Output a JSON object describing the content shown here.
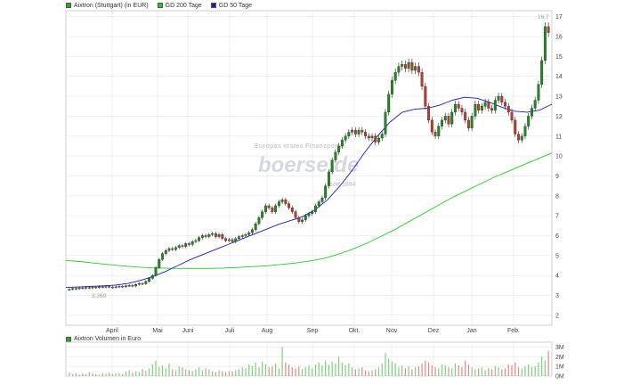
{
  "legend": {
    "price_label": "Aixtron (Stuttgart) (in EUR)",
    "gd200_label": "GD 200 Tage",
    "gd50_label": "GD 50 Tage",
    "volume_label": "Aixtron Volumen in Euro"
  },
  "colors": {
    "price_swatch": "#22aa22",
    "gd200": "#22cc22",
    "gd50": "#1a1acc",
    "up": "#1e8a1e",
    "down": "#c0392b",
    "vol_up": "#7fcf7f",
    "vol_down": "#e08a8a",
    "grid": "#e5e5e5"
  },
  "watermark": {
    "line1": "Europas erstes Finanzportal",
    "brand": "boerse.de",
    "line3": "seit 1994"
  },
  "chart_data": [
    {
      "type": "candlestick",
      "title": "Aixtron (Stuttgart) (in EUR)",
      "ylim": [
        1.5,
        17.3
      ],
      "y_ticks": [
        "2",
        "3",
        "4",
        "5",
        "6",
        "7",
        "8",
        "9",
        "10",
        "11",
        "12",
        "13",
        "14",
        "15",
        "16",
        "17"
      ],
      "x_ticks": [
        "April",
        "Mai",
        "Juni",
        "Juli",
        "Aug",
        "Sep",
        "Okt.",
        "Nov",
        "Dez",
        "Jan",
        "Feb."
      ],
      "low_annotation": "3.269",
      "high_annotation": "16.7",
      "close": [
        3.3,
        3.35,
        3.33,
        3.38,
        3.36,
        3.4,
        3.37,
        3.42,
        3.39,
        3.44,
        3.41,
        3.45,
        3.42,
        3.4,
        3.44,
        3.46,
        3.43,
        3.48,
        3.5,
        3.47,
        3.55,
        3.6,
        3.58,
        3.7,
        3.85,
        4.0,
        4.4,
        4.8,
        5.1,
        5.25,
        5.35,
        5.3,
        5.4,
        5.5,
        5.45,
        5.6,
        5.55,
        5.7,
        5.75,
        5.9,
        6.0,
        5.95,
        6.05,
        6.1,
        5.95,
        6.05,
        5.85,
        5.75,
        5.8,
        5.7,
        5.85,
        5.95,
        6.0,
        6.05,
        6.15,
        6.3,
        6.6,
        6.9,
        7.2,
        7.5,
        7.4,
        7.2,
        7.5,
        7.7,
        7.8,
        7.6,
        7.4,
        7.2,
        6.9,
        6.7,
        6.8,
        7.0,
        7.1,
        7.2,
        7.5,
        7.7,
        7.9,
        8.5,
        9.2,
        9.8,
        10.2,
        10.5,
        10.8,
        11.0,
        11.2,
        11.3,
        11.1,
        11.3,
        11.2,
        11.0,
        10.9,
        11.0,
        10.7,
        10.9,
        11.1,
        12.2,
        13.1,
        13.8,
        14.2,
        14.5,
        14.6,
        14.4,
        14.7,
        14.3,
        14.5,
        14.2,
        13.5,
        12.5,
        11.8,
        11.2,
        11.0,
        11.5,
        11.8,
        12.0,
        11.6,
        12.2,
        12.6,
        12.4,
        12.2,
        11.8,
        11.4,
        12.0,
        12.6,
        12.3,
        12.5,
        12.7,
        12.4,
        12.3,
        12.8,
        13.0,
        12.7,
        12.5,
        12.2,
        11.8,
        11.1,
        10.8,
        11.0,
        11.5,
        12.0,
        12.4,
        12.8,
        13.6,
        14.8,
        16.5,
        16.2
      ],
      "series": [
        {
          "name": "GD 200 Tage",
          "values": [
            4.75,
            4.7,
            4.62,
            4.55,
            4.48,
            4.42,
            4.38,
            4.36,
            4.35,
            4.35,
            4.35,
            4.37,
            4.4,
            4.44,
            4.48,
            4.55,
            4.62,
            4.72,
            4.85,
            5.05,
            5.3,
            5.6,
            5.95,
            6.3,
            6.7,
            7.1,
            7.5,
            7.9,
            8.25,
            8.6,
            8.95,
            9.25,
            9.55,
            9.85,
            10.15
          ]
        },
        {
          "name": "GD 50 Tage",
          "values": [
            3.4,
            3.42,
            3.45,
            3.48,
            3.52,
            3.6,
            3.75,
            3.95,
            4.2,
            4.5,
            4.8,
            5.05,
            5.3,
            5.55,
            5.8,
            6.05,
            6.3,
            6.55,
            6.75,
            6.95,
            7.3,
            7.8,
            8.5,
            9.3,
            10.2,
            11.0,
            11.7,
            12.2,
            12.35,
            12.4,
            12.55,
            12.8,
            12.95,
            12.9,
            12.7,
            12.45,
            12.25,
            12.2,
            12.3,
            12.6
          ]
        }
      ]
    },
    {
      "type": "bar",
      "title": "Aixtron Volumen in Euro",
      "ylim": [
        0,
        3.5
      ],
      "y_ticks": [
        "3M",
        "2M",
        "1M",
        "0M"
      ],
      "values": [
        0.35,
        0.2,
        0.3,
        0.15,
        0.25,
        0.2,
        0.4,
        0.3,
        0.2,
        0.15,
        0.3,
        0.25,
        0.35,
        0.2,
        0.25,
        0.3,
        0.2,
        0.45,
        0.6,
        0.35,
        0.5,
        0.4,
        0.7,
        0.55,
        0.8,
        1.2,
        1.6,
        0.9,
        1.1,
        0.8,
        1.3,
        0.7,
        0.6,
        1.0,
        0.9,
        0.7,
        0.6,
        0.5,
        0.7,
        0.9,
        0.6,
        0.8,
        0.7,
        0.5,
        0.4,
        0.6,
        0.5,
        0.4,
        0.5,
        0.45,
        0.6,
        0.7,
        0.9,
        0.8,
        1.2,
        1.0,
        1.4,
        0.9,
        1.5,
        1.2,
        0.9,
        1.0,
        1.3,
        0.8,
        3.0,
        1.4,
        1.2,
        0.9,
        0.8,
        1.0,
        0.7,
        0.9,
        1.1,
        0.8,
        1.2,
        1.4,
        1.1,
        1.6,
        1.2,
        1.5,
        1.3,
        2.0,
        1.4,
        1.1,
        1.3,
        0.9,
        0.7,
        0.8,
        0.9,
        0.6,
        0.5,
        0.6,
        0.7,
        0.9,
        1.3,
        2.4,
        1.8,
        1.5,
        1.3,
        0.9,
        1.1,
        0.8,
        1.0,
        0.7,
        0.9,
        1.0,
        1.3,
        1.6,
        1.4,
        1.1,
        0.9,
        0.8,
        1.2,
        1.1,
        0.9,
        0.8,
        1.3,
        1.1,
        0.9,
        1.6,
        1.2,
        0.9,
        0.7,
        0.8,
        0.9,
        0.6,
        0.8,
        0.7,
        1.0,
        0.9,
        0.7,
        0.8,
        1.2,
        1.1,
        1.4,
        0.9,
        0.8,
        1.0,
        1.2,
        0.9,
        1.0,
        1.4,
        2.0,
        1.6,
        2.6
      ]
    }
  ]
}
